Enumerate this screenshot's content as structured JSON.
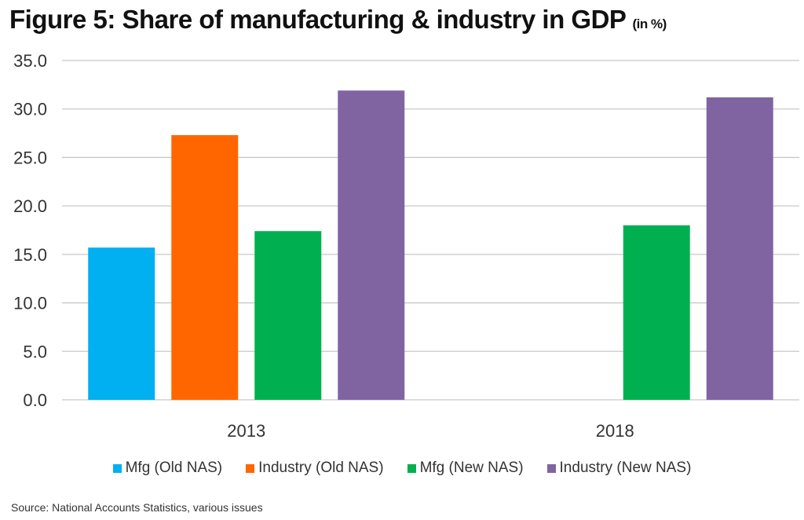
{
  "chart_data": {
    "type": "bar",
    "title": "Figure 5: Share of manufacturing & industry in GDP",
    "title_unit": "(in %)",
    "categories": [
      "2013",
      "2018"
    ],
    "series": [
      {
        "name": "Mfg (Old NAS)",
        "values": [
          15.7,
          null
        ],
        "color": "#00B0F0"
      },
      {
        "name": "Industry (Old NAS)",
        "values": [
          27.3,
          null
        ],
        "color": "#FF6600"
      },
      {
        "name": "Mfg (New NAS)",
        "values": [
          17.4,
          18.0
        ],
        "color": "#00B050"
      },
      {
        "name": "Industry (New NAS)",
        "values": [
          31.9,
          31.2
        ],
        "color": "#8064A2"
      }
    ],
    "ylim": [
      0,
      35
    ],
    "yticks": [
      "0.0",
      "5.0",
      "10.0",
      "15.0",
      "20.0",
      "25.0",
      "30.0",
      "35.0"
    ],
    "grid": true,
    "legend": "bottom",
    "source": "Source: National Accounts Statistics, various issues"
  }
}
